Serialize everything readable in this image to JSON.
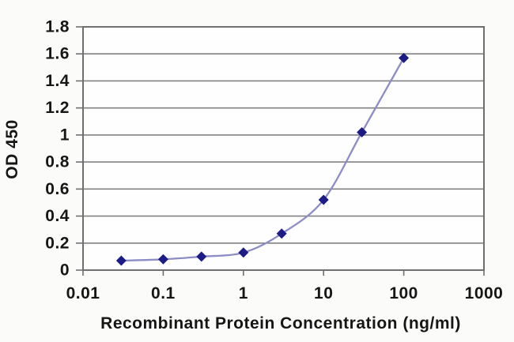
{
  "chart_data": {
    "type": "line",
    "title": "",
    "xlabel": "Recombinant Protein Concentration (ng/ml)",
    "ylabel": "OD 450",
    "x_scale": "log10",
    "x": [
      0.03,
      0.1,
      0.3,
      1,
      3,
      10,
      30,
      100
    ],
    "y": [
      0.07,
      0.08,
      0.1,
      0.13,
      0.27,
      0.52,
      1.02,
      1.57
    ],
    "xlim": [
      0.01,
      1000
    ],
    "ylim": [
      0,
      1.8
    ],
    "x_ticks": [
      0.01,
      0.1,
      1,
      10,
      100,
      1000
    ],
    "x_tick_labels": [
      "0.01",
      "0.1",
      "1",
      "10",
      "100",
      "1000"
    ],
    "y_ticks": [
      0,
      0.2,
      0.4,
      0.6,
      0.8,
      1,
      1.2,
      1.4,
      1.6,
      1.8
    ],
    "y_tick_labels": [
      "0",
      "0.2",
      "0.4",
      "0.6",
      "0.8",
      "1",
      "1.2",
      "1.4",
      "1.6",
      "1.8"
    ],
    "grid": "horizontal",
    "legend": "none",
    "line_style": "smoothed",
    "marker": "diamond",
    "colors": {
      "line": "#8c8cc6",
      "marker": "#1c1c87",
      "gridline": "#828282",
      "axis_border": "#6f6f6f",
      "tick": "#6f6f6f",
      "text": "#161616",
      "plot_bg": "#fefefe",
      "page_bg": "#fbfbfa"
    }
  }
}
